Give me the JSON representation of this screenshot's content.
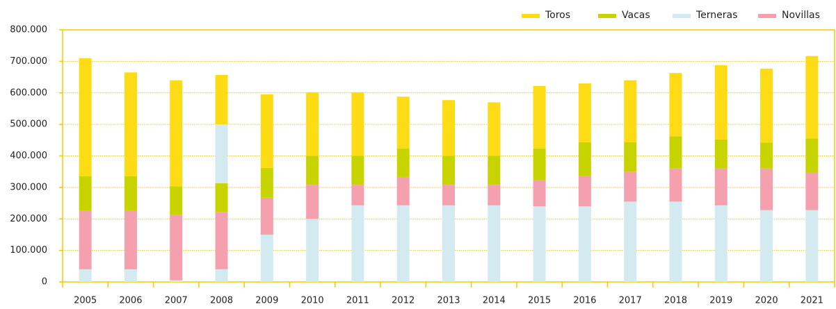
{
  "chart_data": {
    "type": "stacked_bar",
    "categories": [
      "2005",
      "2006",
      "2007",
      "2008",
      "2009",
      "2010",
      "2011",
      "2012",
      "2013",
      "2014",
      "2015",
      "2016",
      "2017",
      "2018",
      "2019",
      "2020",
      "2021"
    ],
    "series": [
      {
        "name": "Terneras",
        "color": "#d3eaf1",
        "values": [
          40000,
          40000,
          5000,
          40000,
          150000,
          200000,
          243000,
          243000,
          243000,
          243000,
          240000,
          240000,
          255000,
          255000,
          243000,
          228000,
          228000
        ]
      },
      {
        "name": "Novillas",
        "color": "#f4a0ae",
        "values": [
          185000,
          185000,
          207000,
          182000,
          117000,
          108000,
          65000,
          90000,
          65000,
          65000,
          83000,
          97000,
          95000,
          105000,
          117000,
          132000,
          119000
        ]
      },
      {
        "name": "Vacas",
        "color": "#c8d400",
        "values": [
          110000,
          110000,
          91000,
          91000,
          95000,
          92000,
          92000,
          90000,
          92000,
          92000,
          100000,
          106000,
          93000,
          102000,
          92000,
          82000,
          108000
        ]
      },
      {
        "color": "#d3eaf1",
        "values": [
          null,
          null,
          null,
          187000,
          null,
          null,
          null,
          null,
          null,
          null,
          null,
          null,
          null,
          null,
          null,
          null,
          null
        ]
      },
      {
        "name": "Toros",
        "color": "#fddc16",
        "values": [
          375000,
          330000,
          337000,
          157000,
          233000,
          202000,
          202000,
          165000,
          177000,
          170000,
          199000,
          187000,
          197000,
          201000,
          236000,
          235000,
          262000
        ]
      }
    ],
    "legend_order": [
      "Toros",
      "Vacas",
      "Terneras",
      "Novillas"
    ],
    "legend": "top-right",
    "ylim": [
      0,
      800000
    ],
    "yticks": [
      0,
      {
        "value": 100000,
        "label": "100.000"
      },
      {
        "value": 200000,
        "label": "200.000"
      },
      {
        "value": 300000,
        "label": "300.000"
      },
      {
        "value": 400000,
        "label": "400.000"
      },
      {
        "value": 500000,
        "label": "500.000"
      },
      {
        "value": 600000,
        "label": "600.000"
      },
      {
        "value": 700000,
        "label": "700.000"
      },
      {
        "value": 800000,
        "label": "800.000"
      }
    ],
    "grid": true
  }
}
